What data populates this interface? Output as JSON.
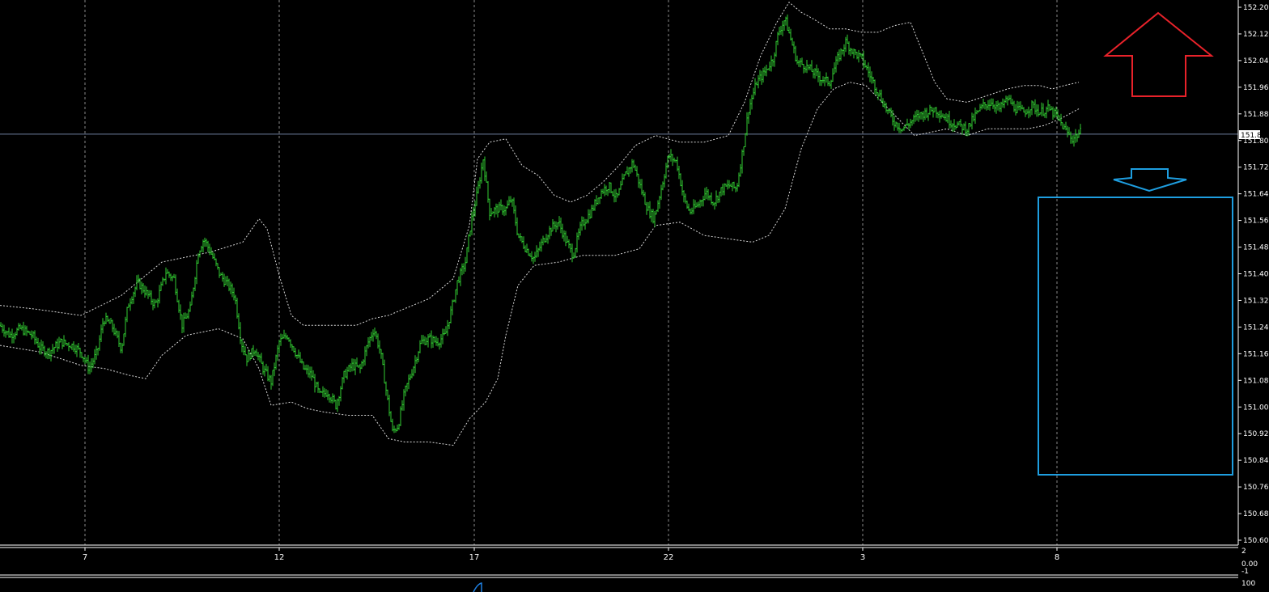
{
  "colors": {
    "background": "#000000",
    "candle": "#32cd32",
    "band": "#d8d8d8",
    "grid": "#8a8a8a",
    "axis": "#ffffff",
    "current_price_line": "#6f7f9f",
    "up_arrow": "#e8222a",
    "down_arrow": "#1e9ee0",
    "box": "#1e9ee0",
    "indicator": "#1e7fe0"
  },
  "chart_data": {
    "type": "candlestick",
    "title": "",
    "xlabel": "",
    "ylabel": "",
    "ylim": [
      150.605,
      152.215
    ],
    "price_ticks": [
      "152.205",
      "152.125",
      "152.045",
      "151.965",
      "151.885",
      "151.805",
      "151.725",
      "151.645",
      "151.565",
      "151.485",
      "151.405",
      "151.325",
      "151.245",
      "151.165",
      "151.085",
      "151.005",
      "150.925",
      "150.845",
      "150.765",
      "150.685",
      "150.605"
    ],
    "current_price": "151.824",
    "date_labels": [
      "7",
      "12",
      "17",
      "22",
      "3",
      "8"
    ],
    "close_path": [
      [
        0,
        151.25
      ],
      [
        12,
        151.22
      ],
      [
        25,
        151.24
      ],
      [
        40,
        151.22
      ],
      [
        50,
        151.18
      ],
      [
        60,
        151.17
      ],
      [
        75,
        151.2
      ],
      [
        90,
        151.19
      ],
      [
        100,
        151.17
      ],
      [
        110,
        151.12
      ],
      [
        120,
        151.17
      ],
      [
        128,
        151.27
      ],
      [
        138,
        151.25
      ],
      [
        150,
        151.18
      ],
      [
        158,
        151.31
      ],
      [
        170,
        151.38
      ],
      [
        180,
        151.35
      ],
      [
        192,
        151.31
      ],
      [
        205,
        151.41
      ],
      [
        215,
        151.39
      ],
      [
        225,
        151.25
      ],
      [
        235,
        151.3
      ],
      [
        245,
        151.47
      ],
      [
        252,
        151.51
      ],
      [
        262,
        151.46
      ],
      [
        272,
        151.4
      ],
      [
        282,
        151.37
      ],
      [
        290,
        151.34
      ],
      [
        298,
        151.2
      ],
      [
        305,
        151.15
      ],
      [
        315,
        151.18
      ],
      [
        325,
        151.12
      ],
      [
        335,
        151.08
      ],
      [
        345,
        151.2
      ],
      [
        355,
        151.22
      ],
      [
        365,
        151.17
      ],
      [
        375,
        151.12
      ],
      [
        385,
        151.1
      ],
      [
        395,
        151.04
      ],
      [
        405,
        151.05
      ],
      [
        415,
        151.01
      ],
      [
        425,
        151.1
      ],
      [
        435,
        151.13
      ],
      [
        445,
        151.12
      ],
      [
        455,
        151.2
      ],
      [
        462,
        151.24
      ],
      [
        470,
        151.17
      ],
      [
        478,
        151.04
      ],
      [
        485,
        150.93
      ],
      [
        492,
        150.95
      ],
      [
        500,
        151.05
      ],
      [
        510,
        151.12
      ],
      [
        520,
        151.2
      ],
      [
        530,
        151.21
      ],
      [
        540,
        151.2
      ],
      [
        550,
        151.22
      ],
      [
        558,
        151.3
      ],
      [
        565,
        151.38
      ],
      [
        575,
        151.44
      ],
      [
        582,
        151.56
      ],
      [
        590,
        151.65
      ],
      [
        597,
        151.75
      ],
      [
        605,
        151.59
      ],
      [
        615,
        151.6
      ],
      [
        625,
        151.6
      ],
      [
        632,
        151.63
      ],
      [
        640,
        151.52
      ],
      [
        650,
        151.48
      ],
      [
        660,
        151.45
      ],
      [
        670,
        151.5
      ],
      [
        680,
        151.54
      ],
      [
        690,
        151.56
      ],
      [
        700,
        151.5
      ],
      [
        708,
        151.46
      ],
      [
        718,
        151.55
      ],
      [
        730,
        151.59
      ],
      [
        742,
        151.65
      ],
      [
        752,
        151.67
      ],
      [
        762,
        151.63
      ],
      [
        772,
        151.7
      ],
      [
        782,
        151.74
      ],
      [
        792,
        151.66
      ],
      [
        800,
        151.6
      ],
      [
        808,
        151.57
      ],
      [
        816,
        151.65
      ],
      [
        826,
        151.76
      ],
      [
        836,
        151.74
      ],
      [
        845,
        151.63
      ],
      [
        852,
        151.59
      ],
      [
        862,
        151.61
      ],
      [
        872,
        151.65
      ],
      [
        882,
        151.62
      ],
      [
        892,
        151.66
      ],
      [
        902,
        151.67
      ],
      [
        910,
        151.66
      ],
      [
        918,
        151.78
      ],
      [
        925,
        151.9
      ],
      [
        935,
        151.98
      ],
      [
        945,
        152.01
      ],
      [
        955,
        152.05
      ],
      [
        962,
        152.13
      ],
      [
        970,
        152.17
      ],
      [
        977,
        152.11
      ],
      [
        985,
        152.04
      ],
      [
        995,
        152.03
      ],
      [
        1005,
        152.01
      ],
      [
        1015,
        151.99
      ],
      [
        1025,
        151.98
      ],
      [
        1035,
        152.05
      ],
      [
        1045,
        152.1
      ],
      [
        1055,
        152.07
      ],
      [
        1065,
        152.05
      ],
      [
        1075,
        152
      ],
      [
        1085,
        151.95
      ],
      [
        1095,
        151.9
      ],
      [
        1105,
        151.86
      ],
      [
        1115,
        151.84
      ],
      [
        1125,
        151.86
      ],
      [
        1135,
        151.88
      ],
      [
        1145,
        151.89
      ],
      [
        1155,
        151.9
      ],
      [
        1165,
        151.88
      ],
      [
        1175,
        151.86
      ],
      [
        1185,
        151.85
      ],
      [
        1195,
        151.84
      ],
      [
        1205,
        151.88
      ],
      [
        1215,
        151.91
      ],
      [
        1225,
        151.92
      ],
      [
        1235,
        151.9
      ],
      [
        1245,
        151.93
      ],
      [
        1255,
        151.9
      ],
      [
        1265,
        151.89
      ],
      [
        1275,
        151.91
      ],
      [
        1285,
        151.89
      ],
      [
        1295,
        151.9
      ],
      [
        1305,
        151.88
      ],
      [
        1315,
        151.84
      ],
      [
        1325,
        151.81
      ],
      [
        1335,
        151.83
      ]
    ],
    "upper_band": [
      [
        0,
        151.31
      ],
      [
        40,
        151.3
      ],
      [
        100,
        151.28
      ],
      [
        150,
        151.34
      ],
      [
        200,
        151.44
      ],
      [
        260,
        151.47
      ],
      [
        300,
        151.5
      ],
      [
        320,
        151.57
      ],
      [
        330,
        151.54
      ],
      [
        345,
        151.4
      ],
      [
        360,
        151.28
      ],
      [
        375,
        151.25
      ],
      [
        400,
        151.25
      ],
      [
        440,
        151.25
      ],
      [
        460,
        151.27
      ],
      [
        480,
        151.28
      ],
      [
        500,
        151.3
      ],
      [
        530,
        151.33
      ],
      [
        560,
        151.39
      ],
      [
        580,
        151.55
      ],
      [
        590,
        151.75
      ],
      [
        605,
        151.8
      ],
      [
        625,
        151.81
      ],
      [
        645,
        151.73
      ],
      [
        665,
        151.7
      ],
      [
        685,
        151.64
      ],
      [
        705,
        151.62
      ],
      [
        725,
        151.64
      ],
      [
        745,
        151.68
      ],
      [
        765,
        151.73
      ],
      [
        785,
        151.79
      ],
      [
        810,
        151.82
      ],
      [
        840,
        151.8
      ],
      [
        870,
        151.8
      ],
      [
        900,
        151.82
      ],
      [
        920,
        151.92
      ],
      [
        940,
        152.06
      ],
      [
        960,
        152.16
      ],
      [
        975,
        152.22
      ],
      [
        990,
        152.19
      ],
      [
        1005,
        152.17
      ],
      [
        1025,
        152.14
      ],
      [
        1045,
        152.14
      ],
      [
        1065,
        152.13
      ],
      [
        1085,
        152.13
      ],
      [
        1105,
        152.15
      ],
      [
        1125,
        152.16
      ],
      [
        1140,
        152.07
      ],
      [
        1155,
        151.98
      ],
      [
        1170,
        151.93
      ],
      [
        1195,
        151.92
      ],
      [
        1220,
        151.94
      ],
      [
        1245,
        151.96
      ],
      [
        1265,
        151.97
      ],
      [
        1285,
        151.97
      ],
      [
        1300,
        151.96
      ],
      [
        1315,
        151.97
      ],
      [
        1333,
        151.98
      ]
    ],
    "lower_band": [
      [
        0,
        151.19
      ],
      [
        50,
        151.17
      ],
      [
        100,
        151.13
      ],
      [
        130,
        151.12
      ],
      [
        160,
        151.1
      ],
      [
        180,
        151.09
      ],
      [
        200,
        151.16
      ],
      [
        230,
        151.22
      ],
      [
        270,
        151.24
      ],
      [
        300,
        151.21
      ],
      [
        320,
        151.12
      ],
      [
        335,
        151.01
      ],
      [
        360,
        151.02
      ],
      [
        380,
        151.0
      ],
      [
        400,
        150.99
      ],
      [
        430,
        150.98
      ],
      [
        460,
        150.98
      ],
      [
        480,
        150.91
      ],
      [
        500,
        150.9
      ],
      [
        530,
        150.9
      ],
      [
        560,
        150.89
      ],
      [
        580,
        150.97
      ],
      [
        600,
        151.02
      ],
      [
        615,
        151.09
      ],
      [
        625,
        151.22
      ],
      [
        640,
        151.37
      ],
      [
        660,
        151.43
      ],
      [
        690,
        151.44
      ],
      [
        720,
        151.46
      ],
      [
        760,
        151.46
      ],
      [
        790,
        151.48
      ],
      [
        810,
        151.55
      ],
      [
        840,
        151.56
      ],
      [
        870,
        151.52
      ],
      [
        900,
        151.51
      ],
      [
        930,
        151.5
      ],
      [
        950,
        151.52
      ],
      [
        970,
        151.6
      ],
      [
        990,
        151.78
      ],
      [
        1010,
        151.9
      ],
      [
        1030,
        151.96
      ],
      [
        1050,
        151.98
      ],
      [
        1070,
        151.97
      ],
      [
        1090,
        151.92
      ],
      [
        1110,
        151.87
      ],
      [
        1130,
        151.82
      ],
      [
        1150,
        151.83
      ],
      [
        1170,
        151.84
      ],
      [
        1195,
        151.82
      ],
      [
        1220,
        151.84
      ],
      [
        1245,
        151.84
      ],
      [
        1270,
        151.84
      ],
      [
        1290,
        151.85
      ],
      [
        1310,
        151.87
      ],
      [
        1333,
        151.9
      ]
    ],
    "subwindow": {
      "ticks": [
        "2",
        "0.00",
        "-1"
      ]
    },
    "subwindow2": {
      "ticks": [
        "100"
      ]
    }
  }
}
